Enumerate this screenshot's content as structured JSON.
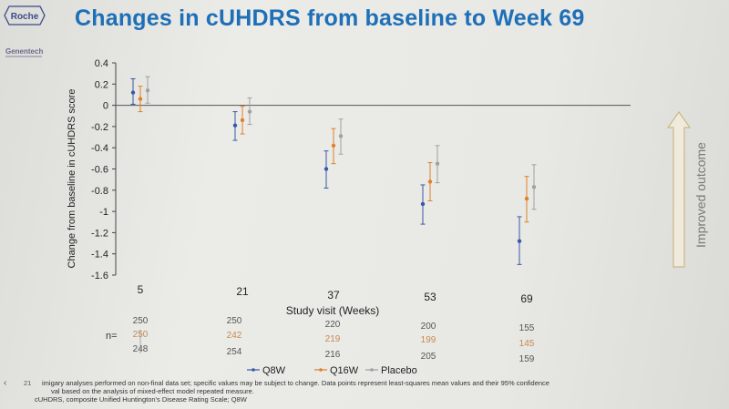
{
  "slide": {
    "title": "Changes in cUHDRS from baseline to Week 69",
    "logo_text": "Roche",
    "sublogo_text": "Genentech",
    "outcome_label": "Improved outcome",
    "footnote_line1": "imigary analyses performed on non-final data set; specific values may be subject to change. Data points represent least-squares mean values and their 95% confidence",
    "footnote_line2": "val based on the analysis of mixed-effect model repeated measure.",
    "footnote_line3": "cUHDRS, composite Unified Huntington's Disease Rating Scale; Q8W",
    "page_number": "21",
    "nav_icon": "chevron-left-icon",
    "colors": {
      "title": "#1d6fb8",
      "q8w": "#3a58a8",
      "q16w": "#e0802a",
      "placebo": "#9a9a9a"
    }
  },
  "chart_data": {
    "type": "scatter",
    "title": "",
    "ylabel": "Change from baseline in cUHDRS score",
    "xlabel": "Study visit (Weeks)",
    "ylim": [
      -1.6,
      0.4
    ],
    "yticks": [
      "0.4",
      "0.2",
      "0",
      "-0.2",
      "-0.4",
      "-0.6",
      "-0.8",
      "-1",
      "-1.2",
      "-1.4",
      "-1.6"
    ],
    "yticks_values": [
      0.4,
      0.2,
      0,
      -0.2,
      -0.4,
      -0.6,
      -0.8,
      -1.0,
      -1.2,
      -1.4,
      -1.6
    ],
    "categories": [
      "5",
      "21",
      "37",
      "53",
      "69"
    ],
    "legend_position": "bottom",
    "n_label": "n=",
    "series": [
      {
        "name": "Q8W",
        "color": "#3a58a8",
        "values": [
          0.12,
          -0.19,
          -0.6,
          -0.93,
          -1.28
        ],
        "ci_low": [
          0.01,
          -0.33,
          -0.78,
          -1.12,
          -1.5
        ],
        "ci_high": [
          0.25,
          -0.06,
          -0.43,
          -0.75,
          -1.05
        ],
        "n": [
          "250",
          "250",
          "220",
          "200",
          "155"
        ]
      },
      {
        "name": "Q16W",
        "color": "#e0802a",
        "values": [
          0.06,
          -0.14,
          -0.38,
          -0.72,
          -0.88
        ],
        "ci_low": [
          -0.06,
          -0.27,
          -0.55,
          -0.9,
          -1.1
        ],
        "ci_high": [
          0.18,
          -0.01,
          -0.22,
          -0.54,
          -0.67
        ],
        "n": [
          "250",
          "242",
          "219",
          "199",
          "145"
        ]
      },
      {
        "name": "Placebo",
        "color": "#a0a0a0",
        "values": [
          0.14,
          -0.06,
          -0.29,
          -0.55,
          -0.77
        ],
        "ci_low": [
          0.02,
          -0.18,
          -0.46,
          -0.73,
          -0.98
        ],
        "ci_high": [
          0.27,
          0.07,
          -0.13,
          -0.38,
          -0.56
        ],
        "n": [
          "248",
          "254",
          "216",
          "205",
          "159"
        ]
      }
    ]
  }
}
